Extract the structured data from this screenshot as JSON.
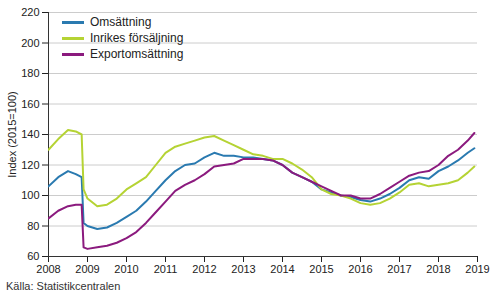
{
  "chart_data": {
    "type": "line",
    "y_label": "Index (2015=100)",
    "source": "Källa: Statistikcentralen",
    "x": [
      2008,
      2008.25,
      2008.5,
      2008.7,
      2008.85,
      2008.9,
      2009,
      2009.25,
      2009.5,
      2009.75,
      2010,
      2010.25,
      2010.5,
      2010.75,
      2011,
      2011.25,
      2011.5,
      2011.75,
      2012,
      2012.25,
      2012.5,
      2012.75,
      2013,
      2013.25,
      2013.5,
      2013.75,
      2014,
      2014.25,
      2014.5,
      2014.75,
      2015,
      2015.25,
      2015.5,
      2015.75,
      2016,
      2016.25,
      2016.5,
      2016.75,
      2017,
      2017.25,
      2017.5,
      2017.75,
      2018,
      2018.25,
      2018.5,
      2018.75,
      2018.92
    ],
    "series": [
      {
        "name": "Omsättning",
        "color": "#2a7ab0",
        "values": [
          106,
          112,
          116,
          114,
          112,
          82,
          80,
          78,
          79,
          82,
          86,
          90,
          96,
          103,
          110,
          116,
          120,
          121,
          125,
          128,
          126,
          126,
          125,
          125,
          124,
          123,
          120,
          115,
          112,
          109,
          104,
          102,
          100,
          99,
          97,
          96,
          98,
          101,
          105,
          110,
          112,
          111,
          116,
          119,
          123,
          128,
          131
        ]
      },
      {
        "name": "Inrikes försäljning",
        "color": "#b5d334",
        "values": [
          130,
          137,
          143,
          142,
          140,
          104,
          98,
          93,
          94,
          98,
          104,
          108,
          112,
          120,
          128,
          132,
          134,
          136,
          138,
          139,
          136,
          133,
          130,
          127,
          126,
          124,
          124,
          121,
          117,
          112,
          104,
          101,
          100,
          98,
          95,
          94,
          95,
          98,
          102,
          107,
          108,
          106,
          107,
          108,
          110,
          115,
          119
        ]
      },
      {
        "name": "Exportomsättning",
        "color": "#8b1a7e",
        "values": [
          85,
          90,
          93,
          94,
          94,
          66,
          65,
          66,
          67,
          69,
          72,
          76,
          82,
          89,
          96,
          103,
          107,
          110,
          114,
          119,
          120,
          121,
          124,
          124,
          124,
          123,
          120,
          115,
          112,
          109,
          106,
          103,
          100,
          100,
          98,
          98,
          101,
          105,
          109,
          113,
          115,
          116,
          120,
          126,
          130,
          136,
          141
        ]
      }
    ],
    "xlim": [
      2008,
      2019
    ],
    "xticks": [
      2008,
      2009,
      2010,
      2011,
      2012,
      2013,
      2014,
      2015,
      2016,
      2017,
      2018,
      2019
    ],
    "ylim": [
      60,
      220
    ],
    "yticks": [
      60,
      80,
      100,
      120,
      140,
      160,
      180,
      200,
      220
    ],
    "grid": true,
    "legend": "top-left"
  }
}
